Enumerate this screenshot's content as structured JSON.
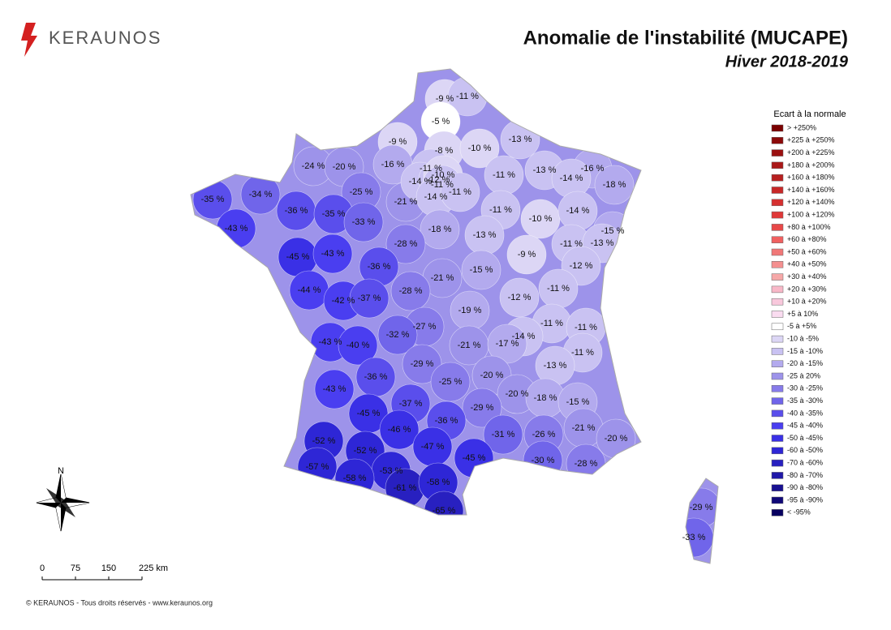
{
  "header": {
    "brand": "KERAUNOS",
    "title": "Anomalie de l'instabilité (MUCAPE)",
    "subtitle": "Hiver 2018-2019"
  },
  "legend": {
    "title": "Ecart à la normale",
    "items": [
      {
        "label": "> +250%",
        "color": "#7b0000"
      },
      {
        "label": "+225 à +250%",
        "color": "#8b0a0a"
      },
      {
        "label": "+200 à +225%",
        "color": "#9b1010"
      },
      {
        "label": "+180 à +200%",
        "color": "#aa1818"
      },
      {
        "label": "+160 à +180%",
        "color": "#b82020"
      },
      {
        "label": "+140 à +160%",
        "color": "#c82828"
      },
      {
        "label": "+120 à +140%",
        "color": "#d63030"
      },
      {
        "label": "+100 à +120%",
        "color": "#e03838"
      },
      {
        "label": "+80 à +100%",
        "color": "#e84848"
      },
      {
        "label": "+60 à +80%",
        "color": "#f06060"
      },
      {
        "label": "+50 à +60%",
        "color": "#f07878"
      },
      {
        "label": "+40 à +50%",
        "color": "#f49090"
      },
      {
        "label": "+30 à +40%",
        "color": "#f6a8a8"
      },
      {
        "label": "+20 à +30%",
        "color": "#f8b8c8"
      },
      {
        "label": "+10 à +20%",
        "color": "#f8c8dc"
      },
      {
        "label": "+5 à 10%",
        "color": "#fadcf0"
      },
      {
        "label": "-5 à +5%",
        "color": "#ffffff"
      },
      {
        "label": "-10 à -5%",
        "color": "#dcd6f5"
      },
      {
        "label": "-15 à -10%",
        "color": "#c9c2f2"
      },
      {
        "label": "-20 à -15%",
        "color": "#b3aaee"
      },
      {
        "label": "-25 à 20%",
        "color": "#9d93ea"
      },
      {
        "label": "-30 à -25%",
        "color": "#877bea"
      },
      {
        "label": "-35 à -30%",
        "color": "#7065ea"
      },
      {
        "label": "-40 à -35%",
        "color": "#5a4eec"
      },
      {
        "label": "-45 à -40%",
        "color": "#4a3ef0"
      },
      {
        "label": "-50 à -45%",
        "color": "#3a30e6"
      },
      {
        "label": "-60 à -50%",
        "color": "#2e26d6"
      },
      {
        "label": "-70 à -60%",
        "color": "#2820c0"
      },
      {
        "label": "-80 à -70%",
        "color": "#2018a8"
      },
      {
        "label": "-90 à -80%",
        "color": "#181090"
      },
      {
        "label": "-95 à -90%",
        "color": "#100878"
      },
      {
        "label": "< -95%",
        "color": "#080060"
      }
    ]
  },
  "departments": [
    {
      "label": "-9 %",
      "color": "#dcd6f5"
    },
    {
      "label": "-11 %",
      "color": "#c9c2f2"
    },
    {
      "label": "-5 %",
      "color": "#ffffff"
    },
    {
      "label": "-9 %",
      "color": "#dcd6f5"
    },
    {
      "label": "-8 %",
      "color": "#dcd6f5"
    },
    {
      "label": "-10 %",
      "color": "#dcd6f5"
    },
    {
      "label": "-13 %",
      "color": "#c9c2f2"
    },
    {
      "label": "-24 %",
      "color": "#9d93ea"
    },
    {
      "label": "-20 %",
      "color": "#9d93ea"
    },
    {
      "label": "-16 %",
      "color": "#b3aaee"
    },
    {
      "label": "-11 %",
      "color": "#c9c2f2"
    },
    {
      "label": "-11 %",
      "color": "#c9c2f2"
    },
    {
      "label": "-13 %",
      "color": "#c9c2f2"
    },
    {
      "label": "-16 %",
      "color": "#b3aaee"
    },
    {
      "label": "-14 %",
      "color": "#c9c2f2"
    },
    {
      "label": "-18 %",
      "color": "#b3aaee"
    },
    {
      "label": "-35 %",
      "color": "#5a4eec"
    },
    {
      "label": "-34 %",
      "color": "#7065ea"
    },
    {
      "label": "-25 %",
      "color": "#877bea"
    },
    {
      "label": "-21 %",
      "color": "#9d93ea"
    },
    {
      "label": "-14 %",
      "color": "#c9c2f2"
    },
    {
      "label": "-12 %",
      "color": "#c9c2f2"
    },
    {
      "label": "-10 %",
      "color": "#dcd6f5"
    },
    {
      "label": "-11 %",
      "color": "#c9c2f2"
    },
    {
      "label": "-14 %",
      "color": "#c9c2f2"
    },
    {
      "label": "-11 %",
      "color": "#c9c2f2"
    },
    {
      "label": "-36 %",
      "color": "#5a4eec"
    },
    {
      "label": "-35 %",
      "color": "#5a4eec"
    },
    {
      "label": "-33 %",
      "color": "#7065ea"
    },
    {
      "label": "-11 %",
      "color": "#c9c2f2"
    },
    {
      "label": "-10 %",
      "color": "#dcd6f5"
    },
    {
      "label": "-14 %",
      "color": "#c9c2f2"
    },
    {
      "label": "-43 %",
      "color": "#4a3ef0"
    },
    {
      "label": "-18 %",
      "color": "#b3aaee"
    },
    {
      "label": "-13 %",
      "color": "#c9c2f2"
    },
    {
      "label": "-15 %",
      "color": "#b3aaee"
    },
    {
      "label": "-11 %",
      "color": "#c9c2f2"
    },
    {
      "label": "-13 %",
      "color": "#c9c2f2"
    },
    {
      "label": "-28 %",
      "color": "#877bea"
    },
    {
      "label": "-45 %",
      "color": "#3a30e6"
    },
    {
      "label": "-43 %",
      "color": "#4a3ef0"
    },
    {
      "label": "-36 %",
      "color": "#5a4eec"
    },
    {
      "label": "-9 %",
      "color": "#dcd6f5"
    },
    {
      "label": "-12 %",
      "color": "#c9c2f2"
    },
    {
      "label": "-21 %",
      "color": "#9d93ea"
    },
    {
      "label": "-15 %",
      "color": "#b3aaee"
    },
    {
      "label": "-44 %",
      "color": "#4a3ef0"
    },
    {
      "label": "-28 %",
      "color": "#877bea"
    },
    {
      "label": "-42 %",
      "color": "#4a3ef0"
    },
    {
      "label": "-37 %",
      "color": "#5a4eec"
    },
    {
      "label": "-11 %",
      "color": "#c9c2f2"
    },
    {
      "label": "-12 %",
      "color": "#c9c2f2"
    },
    {
      "label": "-19 %",
      "color": "#b3aaee"
    },
    {
      "label": "-27 %",
      "color": "#877bea"
    },
    {
      "label": "-11 %",
      "color": "#c9c2f2"
    },
    {
      "label": "-11 %",
      "color": "#c9c2f2"
    },
    {
      "label": "-14 %",
      "color": "#c9c2f2"
    },
    {
      "label": "-32 %",
      "color": "#7065ea"
    },
    {
      "label": "-43 %",
      "color": "#4a3ef0"
    },
    {
      "label": "-40 %",
      "color": "#4a3ef0"
    },
    {
      "label": "-21 %",
      "color": "#9d93ea"
    },
    {
      "label": "-17 %",
      "color": "#b3aaee"
    },
    {
      "label": "-11 %",
      "color": "#c9c2f2"
    },
    {
      "label": "-29 %",
      "color": "#877bea"
    },
    {
      "label": "-13 %",
      "color": "#c9c2f2"
    },
    {
      "label": "-36 %",
      "color": "#5a4eec"
    },
    {
      "label": "-20 %",
      "color": "#9d93ea"
    },
    {
      "label": "-25 %",
      "color": "#877bea"
    },
    {
      "label": "-43 %",
      "color": "#4a3ef0"
    },
    {
      "label": "-20 %",
      "color": "#9d93ea"
    },
    {
      "label": "-18 %",
      "color": "#b3aaee"
    },
    {
      "label": "-15 %",
      "color": "#b3aaee"
    },
    {
      "label": "-37 %",
      "color": "#5a4eec"
    },
    {
      "label": "-29 %",
      "color": "#877bea"
    },
    {
      "label": "-45 %",
      "color": "#3a30e6"
    },
    {
      "label": "-36 %",
      "color": "#5a4eec"
    },
    {
      "label": "-46 %",
      "color": "#3a30e6"
    },
    {
      "label": "-21 %",
      "color": "#9d93ea"
    },
    {
      "label": "-31 %",
      "color": "#7065ea"
    },
    {
      "label": "-26 %",
      "color": "#877bea"
    },
    {
      "label": "-20 %",
      "color": "#9d93ea"
    },
    {
      "label": "-52 %",
      "color": "#2e26d6"
    },
    {
      "label": "-52 %",
      "color": "#2e26d6"
    },
    {
      "label": "-47 %",
      "color": "#3a30e6"
    },
    {
      "label": "-45 %",
      "color": "#3a30e6"
    },
    {
      "label": "-30 %",
      "color": "#7065ea"
    },
    {
      "label": "-28 %",
      "color": "#877bea"
    },
    {
      "label": "-57 %",
      "color": "#2e26d6"
    },
    {
      "label": "-53 %",
      "color": "#2e26d6"
    },
    {
      "label": "-58 %",
      "color": "#2e26d6"
    },
    {
      "label": "-61 %",
      "color": "#2820c0"
    },
    {
      "label": "-58 %",
      "color": "#2e26d6"
    },
    {
      "label": "-65 %",
      "color": "#2820c0"
    },
    {
      "label": "-29 %",
      "color": "#877bea"
    },
    {
      "label": "-33 %",
      "color": "#7065ea"
    }
  ],
  "compass": "N",
  "scale": [
    "0",
    "75",
    "150",
    "225 km"
  ],
  "footer": "© KERAUNOS - Tous droits réservés - www.keraunos.org"
}
